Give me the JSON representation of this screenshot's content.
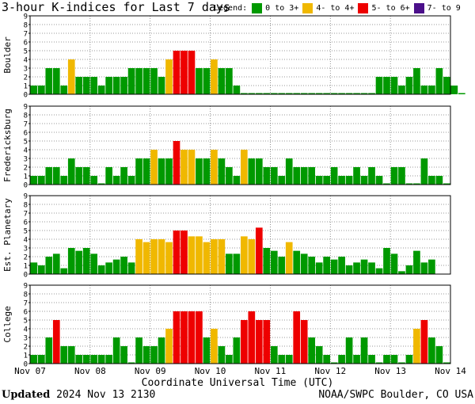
{
  "header": {
    "title": "3-hour K-indices for Last 7 days",
    "legend_label": "Legend:",
    "legend": [
      {
        "label": "0 to 3+",
        "color": "#009900"
      },
      {
        "label": "4- to 4+",
        "color": "#f0b800"
      },
      {
        "label": "5- to 6+",
        "color": "#ee0000"
      },
      {
        "label": "7- to 9",
        "color": "#4b0f8a"
      }
    ]
  },
  "x_axis_title": "Coordinate Universal Time (UTC)",
  "footer": {
    "updated_label": "Updated",
    "updated_value": "2024 Nov 13 2130",
    "credit": "NOAA/SWPC Boulder, CO USA"
  },
  "chart_data": [
    {
      "type": "bar",
      "ylabel": "Boulder",
      "ylim": [
        0,
        9
      ],
      "yticks": [
        "0",
        "1",
        "2",
        "3",
        "4",
        "5",
        "6",
        "7",
        "8",
        "9"
      ],
      "x_tick_labels": [
        "Nov 07",
        "Nov 08",
        "Nov 09",
        "Nov 10",
        "Nov 11",
        "Nov 12",
        "Nov 13",
        "Nov 14"
      ],
      "values": [
        1,
        1,
        3,
        3,
        1,
        4,
        2,
        2,
        2,
        1,
        2,
        2,
        2,
        3,
        3,
        3,
        3,
        2,
        4,
        5,
        5,
        5,
        3,
        3,
        4,
        3,
        3,
        1,
        0,
        0,
        0,
        0,
        0,
        0,
        0,
        0,
        0,
        0,
        0,
        0,
        0,
        0,
        0,
        0,
        0,
        0,
        2,
        2,
        2,
        1,
        2,
        3,
        1,
        1,
        3,
        2,
        1,
        0
      ]
    },
    {
      "type": "bar",
      "ylabel": "Fredericksburg",
      "ylim": [
        0,
        9
      ],
      "yticks": [
        "0",
        "1",
        "2",
        "3",
        "4",
        "5",
        "6",
        "7",
        "8",
        "9"
      ],
      "x_tick_labels": [
        "Nov 07",
        "Nov 08",
        "Nov 09",
        "Nov 10",
        "Nov 11",
        "Nov 12",
        "Nov 13",
        "Nov 14"
      ],
      "values": [
        1,
        1,
        2,
        2,
        1,
        3,
        2,
        2,
        1,
        0,
        2,
        1,
        2,
        1,
        3,
        3,
        4,
        3,
        3,
        5,
        4,
        4,
        3,
        3,
        4,
        3,
        2,
        1,
        4,
        3,
        3,
        2,
        2,
        1,
        3,
        2,
        2,
        2,
        1,
        1,
        2,
        1,
        1,
        2,
        1,
        2,
        1,
        0,
        2,
        2,
        0,
        0,
        3,
        1,
        1,
        0
      ]
    },
    {
      "type": "bar",
      "ylabel": "Est. Planetary",
      "ylim": [
        0,
        9
      ],
      "yticks": [
        "0",
        "1",
        "2",
        "3",
        "4",
        "5",
        "6",
        "7",
        "8",
        "9"
      ],
      "x_tick_labels": [
        "Nov 07",
        "Nov 08",
        "Nov 09",
        "Nov 10",
        "Nov 11",
        "Nov 12",
        "Nov 13",
        "Nov 14"
      ],
      "values": [
        1.33,
        1,
        2,
        2.33,
        0.67,
        3,
        2.67,
        3,
        2.33,
        1,
        1.33,
        1.67,
        2,
        1.33,
        4,
        3.67,
        4,
        4,
        3.67,
        5,
        5,
        4.33,
        4.33,
        3.67,
        4,
        4,
        2.33,
        2.33,
        4.33,
        4,
        5.33,
        3,
        2.67,
        2,
        3.67,
        2.67,
        2.33,
        2,
        1.33,
        2,
        1.67,
        2,
        1,
        1.33,
        1.67,
        1.33,
        0.67,
        3,
        2.33,
        0.33,
        1,
        2.67,
        1.33,
        1.67
      ]
    },
    {
      "type": "bar",
      "ylabel": "College",
      "ylim": [
        0,
        9
      ],
      "yticks": [
        "0",
        "1",
        "2",
        "3",
        "4",
        "5",
        "6",
        "7",
        "8",
        "9"
      ],
      "x_tick_labels": [
        "Nov 07",
        "Nov 08",
        "Nov 09",
        "Nov 10",
        "Nov 11",
        "Nov 12",
        "Nov 13",
        "Nov 14"
      ],
      "values": [
        1,
        1,
        3,
        5,
        2,
        2,
        1,
        1,
        1,
        1,
        1,
        3,
        2,
        0,
        3,
        2,
        2,
        3,
        4,
        6,
        6,
        6,
        6,
        3,
        4,
        2,
        1,
        3,
        5,
        6,
        5,
        5,
        2,
        1,
        1,
        6,
        5,
        3,
        2,
        1,
        0,
        1,
        3,
        1,
        3,
        1,
        0,
        1,
        1,
        0,
        1,
        4,
        5,
        3,
        2,
        0
      ]
    }
  ]
}
